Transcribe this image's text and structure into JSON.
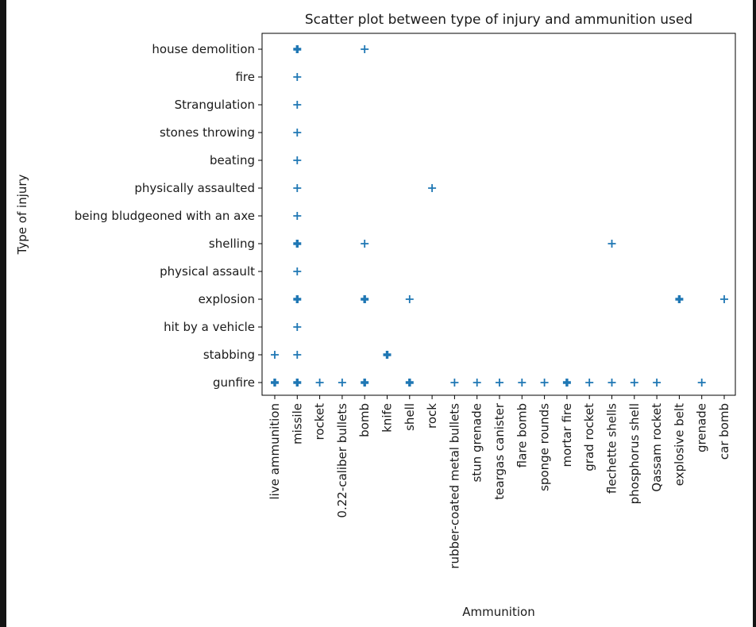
{
  "chart_data": {
    "type": "scatter",
    "title": "Scatter plot between type of injury and ammunition used",
    "xlabel": "Ammunition",
    "ylabel": "Type of injury",
    "marker": "plus",
    "color": "#1f77b4",
    "grid": false,
    "x_categories": [
      "live ammunition",
      "missile",
      "rocket",
      "0.22-caliber bullets",
      "bomb",
      "knife",
      "shell",
      "rock",
      "rubber-coated metal bullets",
      "stun grenade",
      "teargas canister",
      "flare bomb",
      "sponge rounds",
      "mortar fire",
      "grad rocket",
      "flechette shells",
      "phosphorus shell",
      "Qassam rocket",
      "explosive belt",
      "grenade",
      "car bomb"
    ],
    "y_categories": [
      "gunfire",
      "stabbing",
      "hit by a vehicle",
      "explosion",
      "physical assault",
      "shelling",
      "being bludgeoned with an axe",
      "physically assaulted",
      "beating",
      "stones throwing",
      "Strangulation",
      "fire",
      "house demolition"
    ],
    "points": [
      {
        "x": "live ammunition",
        "y": "gunfire",
        "bold": true
      },
      {
        "x": "missile",
        "y": "gunfire",
        "bold": true
      },
      {
        "x": "rocket",
        "y": "gunfire",
        "bold": false
      },
      {
        "x": "0.22-caliber bullets",
        "y": "gunfire",
        "bold": false
      },
      {
        "x": "bomb",
        "y": "gunfire",
        "bold": true
      },
      {
        "x": "shell",
        "y": "gunfire",
        "bold": true
      },
      {
        "x": "rubber-coated metal bullets",
        "y": "gunfire",
        "bold": false
      },
      {
        "x": "stun grenade",
        "y": "gunfire",
        "bold": false
      },
      {
        "x": "teargas canister",
        "y": "gunfire",
        "bold": false
      },
      {
        "x": "flare bomb",
        "y": "gunfire",
        "bold": false
      },
      {
        "x": "sponge rounds",
        "y": "gunfire",
        "bold": false
      },
      {
        "x": "mortar fire",
        "y": "gunfire",
        "bold": true
      },
      {
        "x": "grad rocket",
        "y": "gunfire",
        "bold": false
      },
      {
        "x": "flechette shells",
        "y": "gunfire",
        "bold": false
      },
      {
        "x": "phosphorus shell",
        "y": "gunfire",
        "bold": false
      },
      {
        "x": "Qassam rocket",
        "y": "gunfire",
        "bold": false
      },
      {
        "x": "grenade",
        "y": "gunfire",
        "bold": false
      },
      {
        "x": "live ammunition",
        "y": "stabbing",
        "bold": false
      },
      {
        "x": "missile",
        "y": "stabbing",
        "bold": false
      },
      {
        "x": "knife",
        "y": "stabbing",
        "bold": true
      },
      {
        "x": "missile",
        "y": "hit by a vehicle",
        "bold": false
      },
      {
        "x": "missile",
        "y": "explosion",
        "bold": true
      },
      {
        "x": "bomb",
        "y": "explosion",
        "bold": true
      },
      {
        "x": "shell",
        "y": "explosion",
        "bold": false
      },
      {
        "x": "explosive belt",
        "y": "explosion",
        "bold": true
      },
      {
        "x": "car bomb",
        "y": "explosion",
        "bold": false
      },
      {
        "x": "missile",
        "y": "physical assault",
        "bold": false
      },
      {
        "x": "missile",
        "y": "shelling",
        "bold": true
      },
      {
        "x": "bomb",
        "y": "shelling",
        "bold": false
      },
      {
        "x": "flechette shells",
        "y": "shelling",
        "bold": false
      },
      {
        "x": "missile",
        "y": "being bludgeoned with an axe",
        "bold": false
      },
      {
        "x": "missile",
        "y": "physically assaulted",
        "bold": false
      },
      {
        "x": "rock",
        "y": "physically assaulted",
        "bold": false
      },
      {
        "x": "missile",
        "y": "beating",
        "bold": false
      },
      {
        "x": "missile",
        "y": "stones throwing",
        "bold": false
      },
      {
        "x": "missile",
        "y": "Strangulation",
        "bold": false
      },
      {
        "x": "missile",
        "y": "fire",
        "bold": false
      },
      {
        "x": "missile",
        "y": "house demolition",
        "bold": true
      },
      {
        "x": "bomb",
        "y": "house demolition",
        "bold": false
      }
    ]
  }
}
